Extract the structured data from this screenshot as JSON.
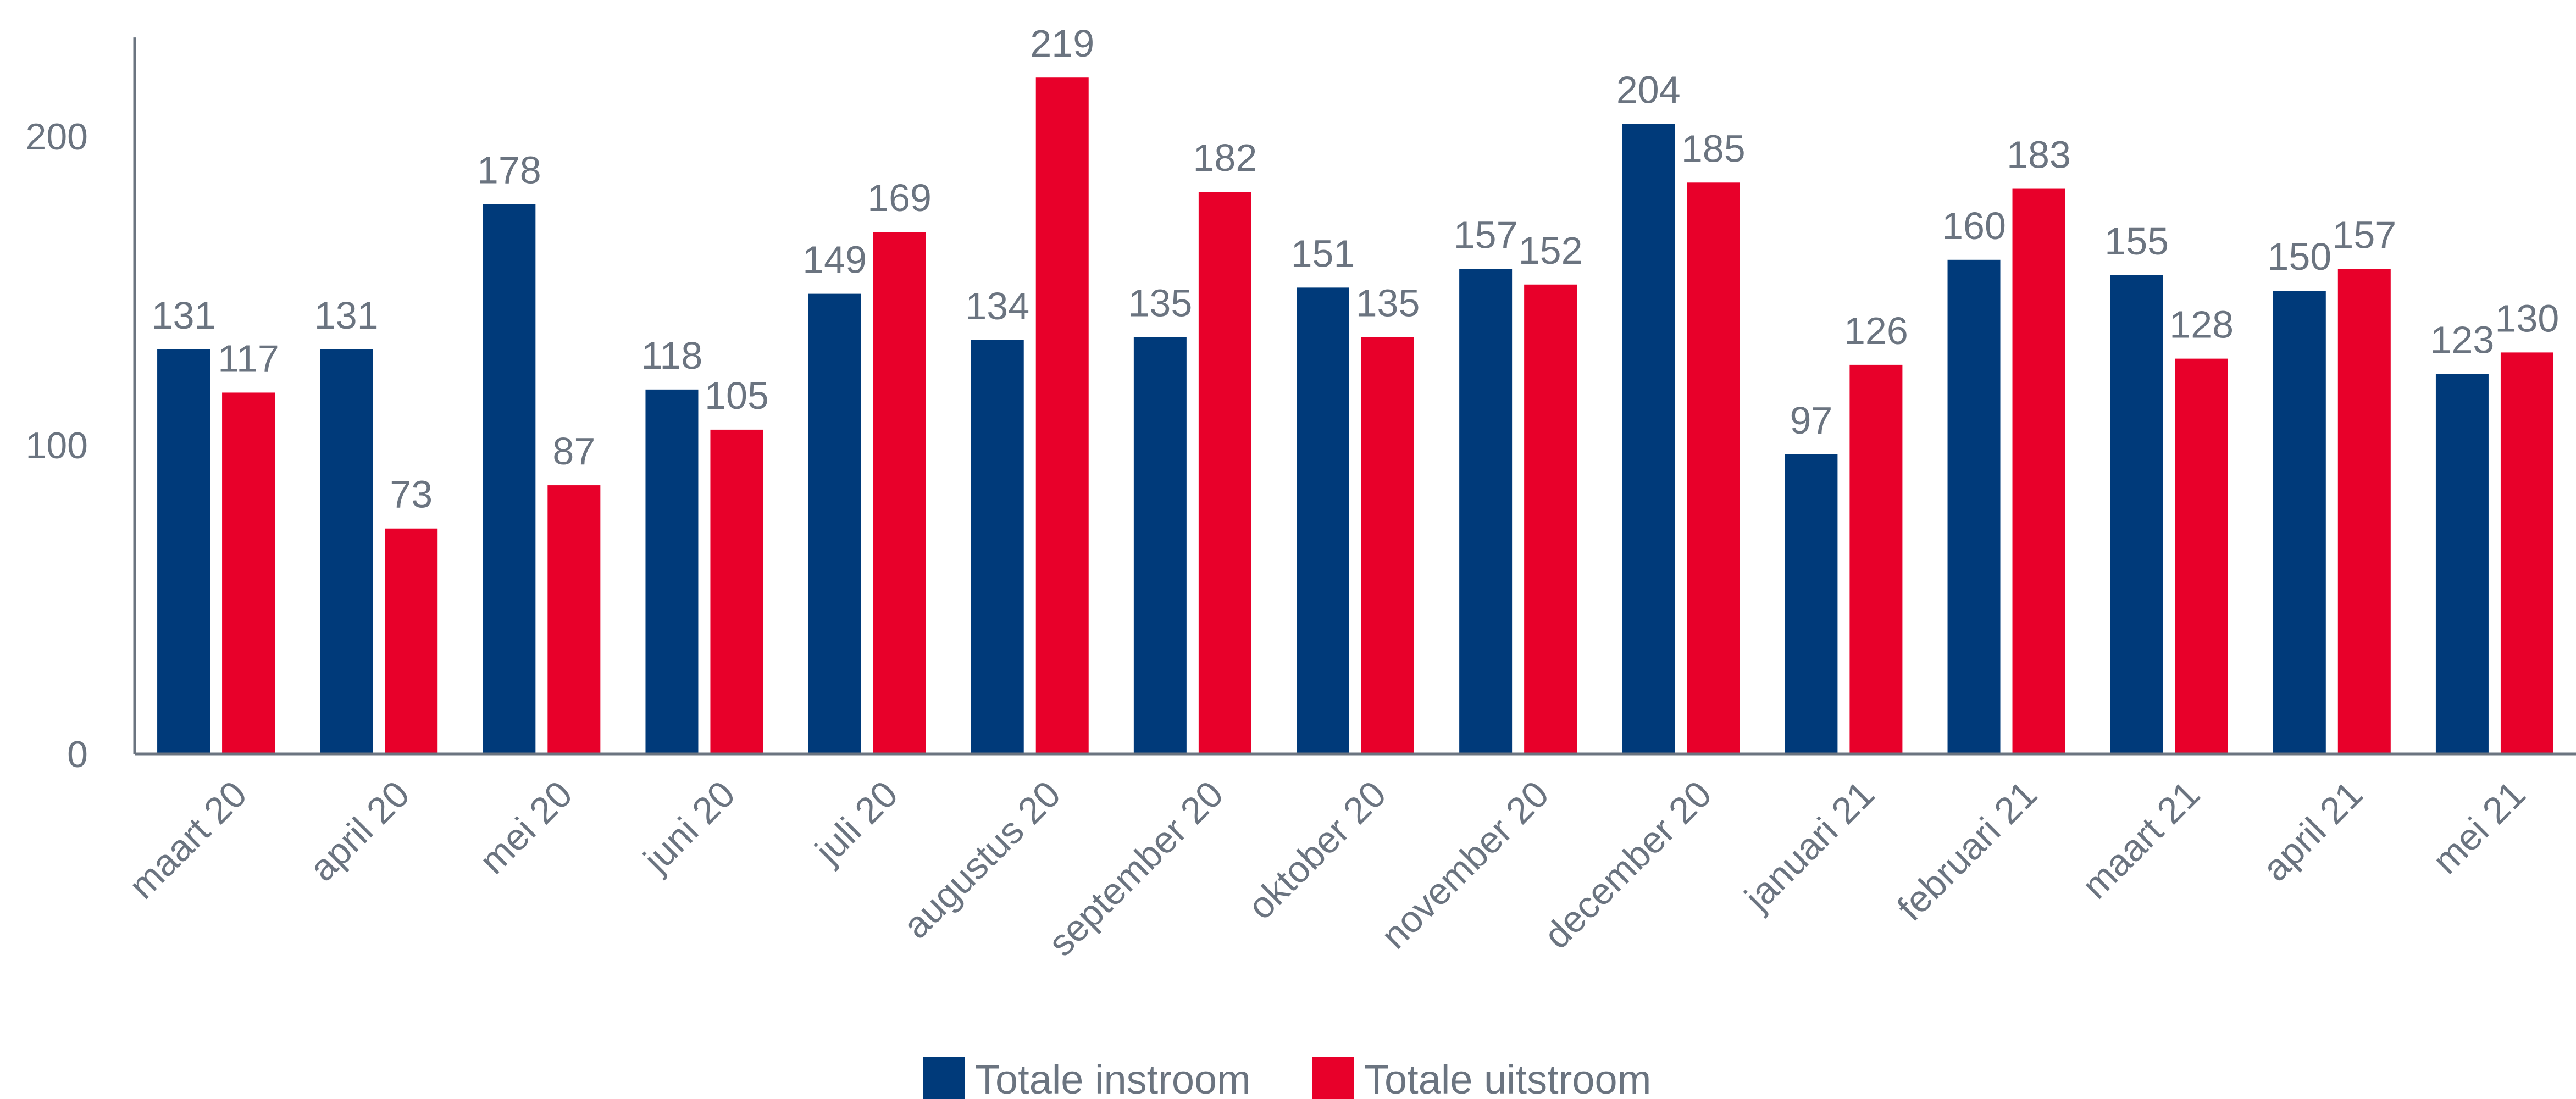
{
  "chart_data": {
    "type": "bar",
    "categories": [
      "maart 20",
      "april 20",
      "mei 20",
      "juni 20",
      "juli 20",
      "augustus 20",
      "september 20",
      "oktober 20",
      "november 20",
      "december 20",
      "januari 21",
      "februari 21",
      "maart 21",
      "april 21",
      "mei 21"
    ],
    "series": [
      {
        "name": "Totale instroom",
        "color": "#003a7a",
        "values": [
          131,
          131,
          178,
          118,
          149,
          134,
          135,
          151,
          157,
          204,
          97,
          160,
          155,
          150,
          123
        ]
      },
      {
        "name": "Totale uitstroom",
        "color": "#e8002a",
        "values": [
          117,
          73,
          87,
          105,
          169,
          219,
          182,
          135,
          152,
          185,
          126,
          183,
          128,
          157,
          130
        ]
      }
    ],
    "y_ticks": [
      "0",
      "100",
      "200"
    ],
    "ylim": [
      0,
      232
    ],
    "grid": false,
    "legend_position": "bottom-center",
    "axis_color": "#6b7480",
    "label_color": "#6b7480"
  }
}
